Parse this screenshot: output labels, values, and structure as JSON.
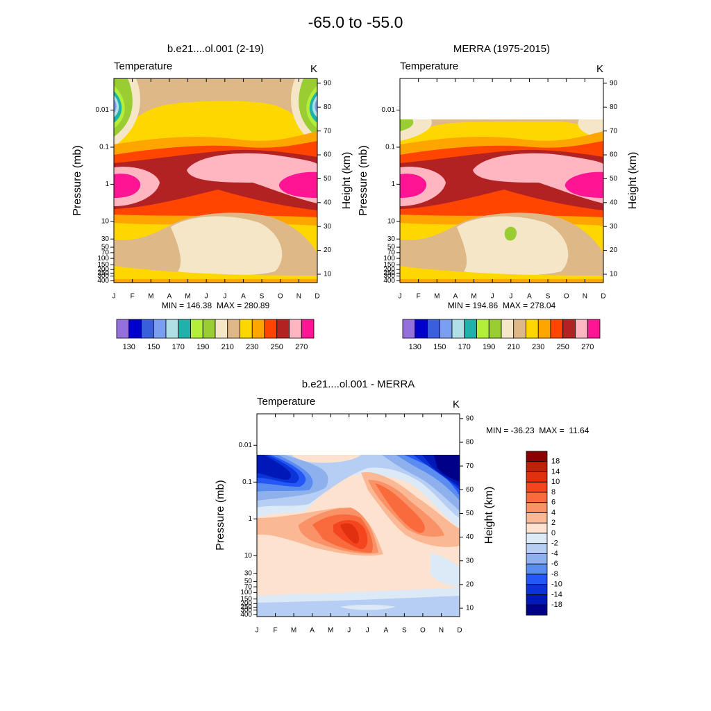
{
  "title": "-65.0 to -55.0",
  "chart_data": [
    {
      "type": "contour",
      "title": "b.e21....ol.001 (2-19)",
      "left_label": "Temperature",
      "right_label": "K",
      "ylabel": "Pressure (mb)",
      "y2label": "Height (km)",
      "categories": [
        "J",
        "F",
        "M",
        "A",
        "M",
        "J",
        "J",
        "A",
        "S",
        "O",
        "N",
        "D"
      ],
      "ylim": [
        450,
        0.0014
      ],
      "log_y": true,
      "yticks": [
        0.01,
        0.1,
        1,
        10,
        30,
        50,
        70,
        100,
        150,
        200,
        250,
        300,
        400
      ],
      "y2lim": [
        6.5,
        92
      ],
      "y2ticks": [
        10,
        20,
        30,
        40,
        50,
        60,
        70,
        80,
        90
      ],
      "annotation": "MIN = 146.38  MAX = 280.89",
      "colorbar": {
        "orientation": "horizontal",
        "levels": [
          130,
          140,
          150,
          160,
          170,
          180,
          190,
          200,
          210,
          220,
          230,
          240,
          250,
          260,
          270
        ],
        "ticks": [
          130,
          150,
          170,
          190,
          210,
          230,
          250,
          270
        ],
        "colors": [
          "#9370db",
          "#0000cd",
          "#3a5fdd",
          "#7b9ff0",
          "#b0e0e6",
          "#20b2aa",
          "#b3ee3a",
          "#9acd32",
          "#f5e6c8",
          "#deb887",
          "#ffd700",
          "#ffa500",
          "#ff4500",
          "#b22222",
          "#ffb6c1",
          "#ff1493"
        ]
      }
    },
    {
      "type": "contour",
      "title": "MERRA (1975-2015)",
      "left_label": "Temperature",
      "right_label": "K",
      "ylabel": "Pressure (mb)",
      "y2label": "Height (km)",
      "categories": [
        "J",
        "F",
        "M",
        "A",
        "M",
        "J",
        "J",
        "A",
        "S",
        "O",
        "N",
        "D"
      ],
      "ylim": [
        450,
        0.0014
      ],
      "log_y": true,
      "yticks": [
        0.01,
        0.1,
        1,
        10,
        30,
        50,
        70,
        100,
        150,
        200,
        250,
        300,
        400
      ],
      "y2lim": [
        6.5,
        92
      ],
      "y2ticks": [
        10,
        20,
        30,
        40,
        50,
        60,
        70,
        80,
        90
      ],
      "annotation": "MIN = 194.86  MAX = 278.04",
      "colorbar": {
        "orientation": "horizontal",
        "levels": [
          130,
          140,
          150,
          160,
          170,
          180,
          190,
          200,
          210,
          220,
          230,
          240,
          250,
          260,
          270
        ],
        "ticks": [
          130,
          150,
          170,
          190,
          210,
          230,
          250,
          270
        ],
        "colors": [
          "#9370db",
          "#0000cd",
          "#3a5fdd",
          "#7b9ff0",
          "#b0e0e6",
          "#20b2aa",
          "#b3ee3a",
          "#9acd32",
          "#f5e6c8",
          "#deb887",
          "#ffd700",
          "#ffa500",
          "#ff4500",
          "#b22222",
          "#ffb6c1",
          "#ff1493"
        ]
      }
    },
    {
      "type": "contour",
      "title": "b.e21....ol.001 - MERRA",
      "left_label": "Temperature",
      "right_label": "K",
      "ylabel": "Pressure (mb)",
      "y2label": "Height (km)",
      "categories": [
        "J",
        "F",
        "M",
        "A",
        "M",
        "J",
        "J",
        "A",
        "S",
        "O",
        "N",
        "D"
      ],
      "ylim": [
        450,
        0.0014
      ],
      "log_y": true,
      "yticks": [
        0.01,
        0.1,
        1,
        10,
        30,
        50,
        70,
        100,
        150,
        200,
        250,
        300,
        400
      ],
      "y2lim": [
        6.5,
        92
      ],
      "y2ticks": [
        10,
        20,
        30,
        40,
        50,
        60,
        70,
        80,
        90
      ],
      "annotation": "MIN = -36.23  MAX =  11.64",
      "colorbar": {
        "orientation": "vertical",
        "levels": [
          18,
          14,
          10,
          8,
          6,
          4,
          2,
          0,
          -2,
          -4,
          -6,
          -8,
          -10,
          -14,
          -18
        ],
        "colors": [
          "#8b0000",
          "#c0200a",
          "#e0300f",
          "#f5451f",
          "#f96a3d",
          "#fa9268",
          "#fbb895",
          "#fde2cf",
          "#dce9f7",
          "#b6cef3",
          "#8eb1ee",
          "#5b8cf0",
          "#2457f5",
          "#0a34d8",
          "#0018b8",
          "#000088"
        ]
      }
    }
  ]
}
